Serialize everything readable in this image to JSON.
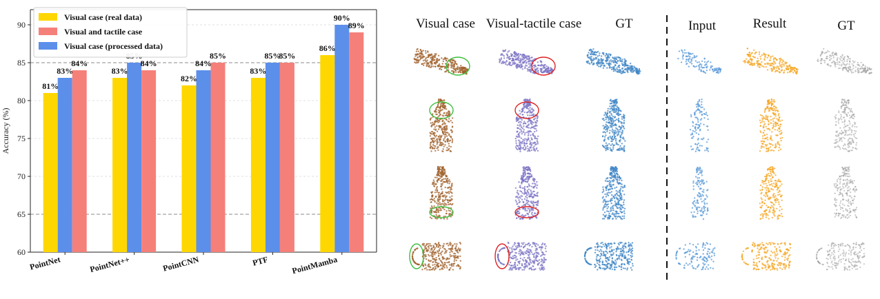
{
  "chart_data": {
    "type": "bar",
    "categories": [
      "PointNet",
      "PointNet++",
      "PointCNN",
      "PTF",
      "PointMamba"
    ],
    "series": [
      {
        "name": "Visual case (real data)",
        "values": [
          81,
          83,
          82,
          83,
          86
        ],
        "labels": [
          "81%",
          "83%",
          "82%",
          "83%",
          "86%"
        ],
        "color": "#FFD700"
      },
      {
        "name": "Visual case (processed data)",
        "values": [
          83,
          85,
          84,
          85,
          90
        ],
        "labels": [
          "83%",
          "85%",
          "84%",
          "85%",
          "90%"
        ],
        "color": "#5B8FEA"
      },
      {
        "name": "Visual and tactile case",
        "values": [
          84,
          84,
          85,
          85,
          89
        ],
        "labels": [
          "84%",
          "84%",
          "85%",
          "85%",
          "89%"
        ],
        "color": "#F5807A"
      }
    ],
    "legend_order": [
      0,
      2,
      1
    ],
    "legend_placement": "top-left",
    "ylabel": "Accuracy (%)",
    "ylim": [
      60,
      92
    ],
    "yticks": [
      60,
      65,
      70,
      75,
      80,
      85,
      90
    ],
    "reference_lines": [
      65,
      85
    ],
    "grid": true
  },
  "figure": {
    "column_headers": [
      "Visual case",
      "Visual-tactile case",
      "GT",
      "Input",
      "Result",
      "GT"
    ],
    "column_colors": [
      "#A0612C",
      "#7B73C4",
      "#3F86C6",
      "#5A9AD8",
      "#F5A623",
      "#9A9A9A"
    ],
    "row_shapes": [
      "lying-bottle",
      "bottle",
      "bottle",
      "cup"
    ],
    "marker_colors": {
      "visual": "#3DBE3D",
      "visual_tactile": "#E02020"
    }
  }
}
